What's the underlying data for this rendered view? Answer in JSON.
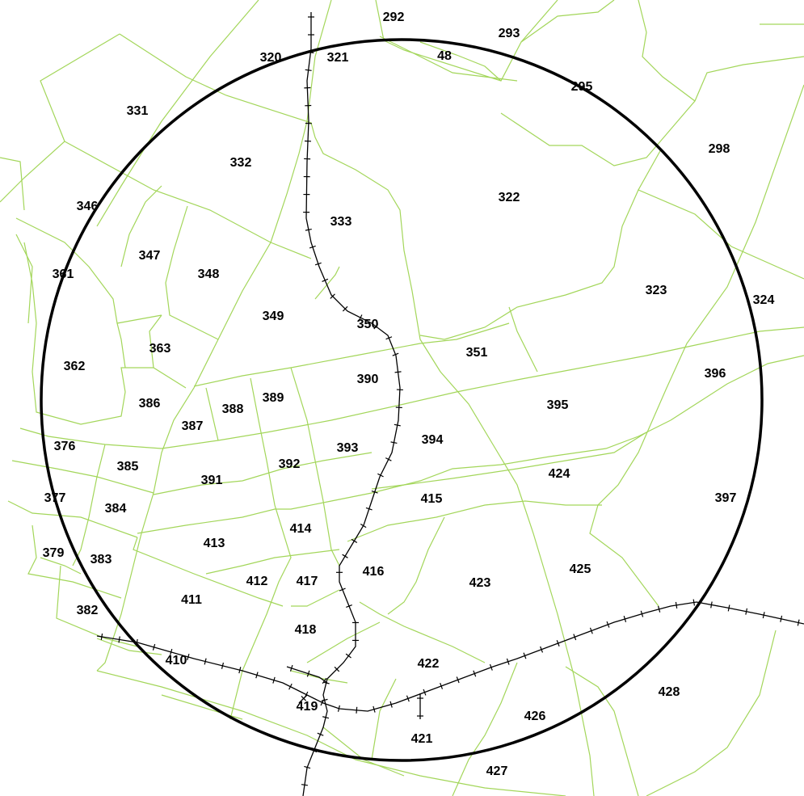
{
  "map": {
    "colors": {
      "boundary": "#a3d65a",
      "rail": "#000000",
      "buffer_ring": "#000000",
      "background": "#ffffff"
    },
    "tracts": [
      {
        "id": "292"
      },
      {
        "id": "293"
      },
      {
        "id": "48"
      },
      {
        "id": "295"
      },
      {
        "id": "320"
      },
      {
        "id": "321"
      },
      {
        "id": "331"
      },
      {
        "id": "332"
      },
      {
        "id": "298"
      },
      {
        "id": "322"
      },
      {
        "id": "346"
      },
      {
        "id": "333"
      },
      {
        "id": "347"
      },
      {
        "id": "348"
      },
      {
        "id": "361"
      },
      {
        "id": "323"
      },
      {
        "id": "324"
      },
      {
        "id": "349"
      },
      {
        "id": "350"
      },
      {
        "id": "363"
      },
      {
        "id": "351"
      },
      {
        "id": "362"
      },
      {
        "id": "396"
      },
      {
        "id": "390"
      },
      {
        "id": "386"
      },
      {
        "id": "389"
      },
      {
        "id": "388"
      },
      {
        "id": "395"
      },
      {
        "id": "387"
      },
      {
        "id": "376"
      },
      {
        "id": "394"
      },
      {
        "id": "393"
      },
      {
        "id": "385"
      },
      {
        "id": "392"
      },
      {
        "id": "391"
      },
      {
        "id": "424"
      },
      {
        "id": "377"
      },
      {
        "id": "415"
      },
      {
        "id": "397"
      },
      {
        "id": "384"
      },
      {
        "id": "414"
      },
      {
        "id": "413"
      },
      {
        "id": "379"
      },
      {
        "id": "383"
      },
      {
        "id": "416"
      },
      {
        "id": "425"
      },
      {
        "id": "412"
      },
      {
        "id": "417"
      },
      {
        "id": "423"
      },
      {
        "id": "411"
      },
      {
        "id": "382"
      },
      {
        "id": "418"
      },
      {
        "id": "410"
      },
      {
        "id": "422"
      },
      {
        "id": "428"
      },
      {
        "id": "419"
      },
      {
        "id": "426"
      },
      {
        "id": "421"
      },
      {
        "id": "427"
      }
    ]
  }
}
